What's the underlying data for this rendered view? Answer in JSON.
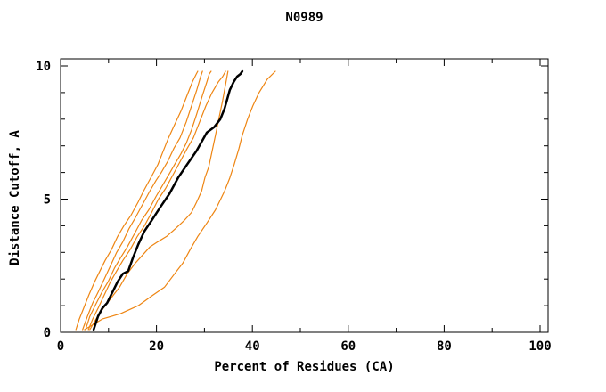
{
  "title": "N0989",
  "chart_data": {
    "type": "line",
    "title": "N0989",
    "xlabel": "Percent of Residues (CA)",
    "ylabel": "Distance Cutoff, A",
    "xlim": [
      0,
      101.7
    ],
    "ylim": [
      0,
      10.3
    ],
    "x_major_ticks": [
      0,
      20,
      40,
      60,
      80,
      100
    ],
    "x_minor_ticks": [
      10,
      30,
      50,
      70,
      90
    ],
    "y_major_ticks": [
      0,
      5,
      10
    ],
    "y_minor_ticks": [
      1,
      2,
      3,
      4,
      6,
      7,
      8,
      9
    ],
    "grid": "off",
    "legend": "none",
    "colors": {
      "model": "#ee8512",
      "reference": "#000000"
    },
    "series": [
      {
        "name": "model-curve-1",
        "role": "model",
        "points": [
          [
            3.2,
            0.1
          ],
          [
            3.9,
            0.5
          ],
          [
            4.8,
            0.9
          ],
          [
            5.9,
            1.4
          ],
          [
            7.1,
            1.9
          ],
          [
            8.2,
            2.3
          ],
          [
            9.3,
            2.7
          ],
          [
            10.6,
            3.1
          ],
          [
            11.9,
            3.6
          ],
          [
            13.2,
            4.0
          ],
          [
            14.7,
            4.4
          ],
          [
            16.2,
            4.9
          ],
          [
            17.3,
            5.3
          ],
          [
            18.2,
            5.6
          ],
          [
            19.1,
            5.9
          ],
          [
            20.3,
            6.3
          ],
          [
            21.4,
            6.8
          ],
          [
            22.5,
            7.3
          ],
          [
            23.8,
            7.8
          ],
          [
            25.1,
            8.3
          ],
          [
            26.4,
            8.9
          ],
          [
            27.5,
            9.4
          ],
          [
            28.3,
            9.7
          ],
          [
            28.6,
            9.8
          ]
        ]
      },
      {
        "name": "model-curve-2",
        "role": "model",
        "points": [
          [
            4.6,
            0.1
          ],
          [
            5.6,
            0.6
          ],
          [
            6.7,
            1.1
          ],
          [
            7.8,
            1.5
          ],
          [
            9.1,
            2.0
          ],
          [
            10.4,
            2.5
          ],
          [
            11.7,
            3.0
          ],
          [
            13.0,
            3.4
          ],
          [
            14.3,
            3.9
          ],
          [
            15.6,
            4.3
          ],
          [
            17.1,
            4.8
          ],
          [
            18.6,
            5.3
          ],
          [
            19.9,
            5.7
          ],
          [
            21.0,
            6.0
          ],
          [
            22.3,
            6.4
          ],
          [
            23.6,
            6.9
          ],
          [
            24.9,
            7.3
          ],
          [
            26.2,
            7.9
          ],
          [
            27.3,
            8.5
          ],
          [
            28.4,
            9.1
          ],
          [
            29.2,
            9.6
          ],
          [
            29.6,
            9.8
          ]
        ]
      },
      {
        "name": "model-curve-3",
        "role": "model",
        "points": [
          [
            5.2,
            0.1
          ],
          [
            6.1,
            0.6
          ],
          [
            7.2,
            1.0
          ],
          [
            8.6,
            1.5
          ],
          [
            9.9,
            1.9
          ],
          [
            11.2,
            2.4
          ],
          [
            12.5,
            2.8
          ],
          [
            13.9,
            3.2
          ],
          [
            15.4,
            3.7
          ],
          [
            16.9,
            4.2
          ],
          [
            18.4,
            4.6
          ],
          [
            19.9,
            5.1
          ],
          [
            21.2,
            5.5
          ],
          [
            22.5,
            5.9
          ],
          [
            23.8,
            6.3
          ],
          [
            25.1,
            6.7
          ],
          [
            26.2,
            7.1
          ],
          [
            27.3,
            7.6
          ],
          [
            28.4,
            8.2
          ],
          [
            29.6,
            8.9
          ],
          [
            30.5,
            9.4
          ],
          [
            31.0,
            9.7
          ],
          [
            31.4,
            9.8
          ]
        ]
      },
      {
        "name": "model-curve-4",
        "role": "model",
        "points": [
          [
            5.8,
            0.1
          ],
          [
            6.7,
            0.5
          ],
          [
            7.8,
            0.9
          ],
          [
            9.1,
            1.4
          ],
          [
            10.4,
            1.9
          ],
          [
            11.7,
            2.3
          ],
          [
            13.0,
            2.7
          ],
          [
            14.5,
            3.1
          ],
          [
            16.0,
            3.6
          ],
          [
            17.5,
            4.0
          ],
          [
            19.0,
            4.5
          ],
          [
            20.4,
            5.0
          ],
          [
            21.9,
            5.4
          ],
          [
            23.4,
            5.9
          ],
          [
            24.9,
            6.4
          ],
          [
            26.4,
            6.9
          ],
          [
            27.7,
            7.3
          ],
          [
            29.0,
            7.9
          ],
          [
            30.3,
            8.5
          ],
          [
            31.6,
            9.0
          ],
          [
            32.9,
            9.4
          ],
          [
            33.8,
            9.6
          ],
          [
            34.4,
            9.8
          ]
        ]
      },
      {
        "name": "model-curve-5",
        "role": "model",
        "points": [
          [
            6.1,
            0.1
          ],
          [
            7.4,
            0.5
          ],
          [
            8.9,
            0.9
          ],
          [
            10.6,
            1.3
          ],
          [
            12.3,
            1.7
          ],
          [
            13.9,
            2.2
          ],
          [
            15.6,
            2.6
          ],
          [
            17.1,
            2.9
          ],
          [
            18.6,
            3.2
          ],
          [
            20.3,
            3.4
          ],
          [
            22.1,
            3.6
          ],
          [
            24.0,
            3.9
          ],
          [
            25.8,
            4.2
          ],
          [
            27.3,
            4.5
          ],
          [
            28.4,
            4.9
          ],
          [
            29.4,
            5.3
          ],
          [
            30.1,
            5.8
          ],
          [
            30.9,
            6.2
          ],
          [
            31.6,
            6.8
          ],
          [
            32.3,
            7.4
          ],
          [
            33.1,
            8.1
          ],
          [
            33.8,
            8.7
          ],
          [
            34.4,
            9.3
          ],
          [
            34.9,
            9.8
          ]
        ]
      },
      {
        "name": "model-curve-6",
        "role": "model",
        "points": [
          [
            5.0,
            0.1
          ],
          [
            8.7,
            0.5
          ],
          [
            12.5,
            0.7
          ],
          [
            16.2,
            1.0
          ],
          [
            19.3,
            1.4
          ],
          [
            21.7,
            1.7
          ],
          [
            23.8,
            2.2
          ],
          [
            25.5,
            2.6
          ],
          [
            27.0,
            3.1
          ],
          [
            28.6,
            3.6
          ],
          [
            30.5,
            4.1
          ],
          [
            32.3,
            4.6
          ],
          [
            34.2,
            5.3
          ],
          [
            35.3,
            5.8
          ],
          [
            36.2,
            6.3
          ],
          [
            37.2,
            6.9
          ],
          [
            37.9,
            7.4
          ],
          [
            39.0,
            8.0
          ],
          [
            40.1,
            8.5
          ],
          [
            41.4,
            9.0
          ],
          [
            43.1,
            9.5
          ],
          [
            44.8,
            9.8
          ]
        ]
      },
      {
        "name": "reference-curve",
        "role": "reference",
        "points": [
          [
            6.9,
            0.1
          ],
          [
            7.8,
            0.6
          ],
          [
            8.7,
            0.9
          ],
          [
            9.7,
            1.1
          ],
          [
            10.8,
            1.5
          ],
          [
            11.9,
            1.9
          ],
          [
            13.0,
            2.2
          ],
          [
            14.1,
            2.3
          ],
          [
            15.1,
            2.8
          ],
          [
            16.2,
            3.3
          ],
          [
            17.5,
            3.8
          ],
          [
            19.0,
            4.2
          ],
          [
            20.8,
            4.7
          ],
          [
            22.7,
            5.2
          ],
          [
            24.5,
            5.8
          ],
          [
            26.4,
            6.3
          ],
          [
            28.3,
            6.8
          ],
          [
            30.5,
            7.5
          ],
          [
            32.0,
            7.7
          ],
          [
            33.3,
            8.0
          ],
          [
            34.2,
            8.4
          ],
          [
            35.3,
            9.1
          ],
          [
            36.1,
            9.4
          ],
          [
            36.8,
            9.6
          ],
          [
            37.5,
            9.7
          ],
          [
            37.9,
            9.8
          ]
        ]
      }
    ]
  }
}
